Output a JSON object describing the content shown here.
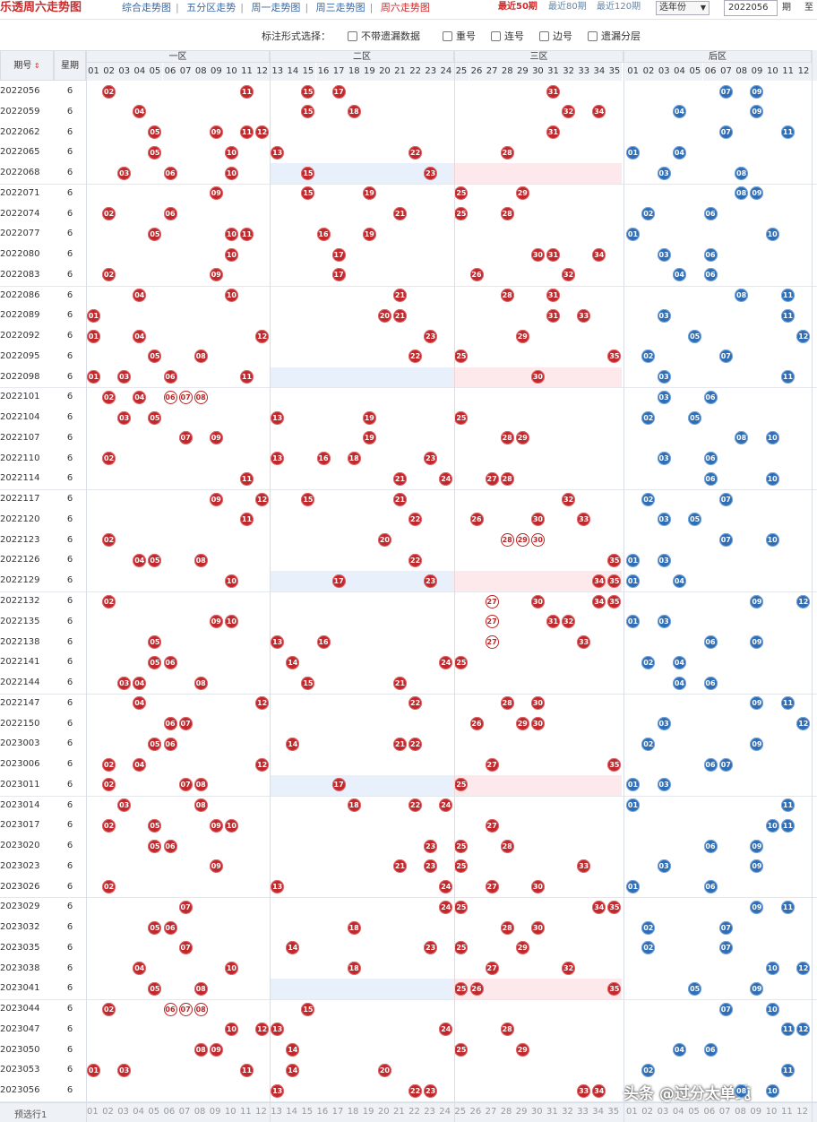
{
  "header": {
    "title": "乐透周六走势图",
    "nav": [
      "综合走势图",
      "五分区走势",
      "周一走势图",
      "周三走势图",
      "周六走势图"
    ],
    "recent": [
      "最近50期",
      "最近80期",
      "最近120期"
    ],
    "year_select": "选年份",
    "period_value": "2022056",
    "period_suffix": "期",
    "to_label": "至"
  },
  "options": {
    "label": "标注形式选择：",
    "items": [
      "不带遗漏数据",
      "重号",
      "连号",
      "边号",
      "遗漏分层"
    ]
  },
  "columns": {
    "period": "期号",
    "week": "星期",
    "zone1": "一区",
    "zone2": "二区",
    "zone3": "三区",
    "back": "后区",
    "front_numbers": [
      "01",
      "02",
      "03",
      "04",
      "05",
      "06",
      "07",
      "08",
      "09",
      "10",
      "11",
      "12",
      "13",
      "14",
      "15",
      "16",
      "17",
      "18",
      "19",
      "20",
      "21",
      "22",
      "23",
      "24",
      "25",
      "26",
      "27",
      "28",
      "29",
      "30",
      "31",
      "32",
      "33",
      "34",
      "35"
    ],
    "back_numbers": [
      "01",
      "02",
      "03",
      "04",
      "05",
      "06",
      "07",
      "08",
      "09",
      "10",
      "11",
      "12"
    ]
  },
  "rows": [
    {
      "p": "2022056",
      "w": "6",
      "f": [
        2,
        11,
        15,
        17,
        31
      ],
      "b": [
        7,
        9
      ]
    },
    {
      "p": "2022059",
      "w": "6",
      "f": [
        4,
        15,
        18,
        32,
        34
      ],
      "b": [
        4,
        9
      ]
    },
    {
      "p": "2022062",
      "w": "6",
      "f": [
        5,
        9,
        11,
        12,
        31
      ],
      "b": [
        7,
        11
      ]
    },
    {
      "p": "2022065",
      "w": "6",
      "f": [
        5,
        10,
        13,
        22,
        28
      ],
      "b": [
        1,
        4
      ]
    },
    {
      "p": "2022068",
      "w": "6",
      "f": [
        3,
        6,
        10,
        15,
        23
      ],
      "b": [
        3,
        8
      ]
    },
    {
      "p": "2022071",
      "w": "6",
      "f": [
        9,
        15,
        19,
        25,
        29
      ],
      "b": [
        8,
        9
      ]
    },
    {
      "p": "2022074",
      "w": "6",
      "f": [
        2,
        6,
        21,
        25,
        28
      ],
      "b": [
        2,
        6
      ]
    },
    {
      "p": "2022077",
      "w": "6",
      "f": [
        5,
        10,
        11,
        16,
        19
      ],
      "b": [
        1,
        10
      ]
    },
    {
      "p": "2022080",
      "w": "6",
      "f": [
        10,
        17,
        30,
        31,
        34
      ],
      "b": [
        3,
        6
      ]
    },
    {
      "p": "2022083",
      "w": "6",
      "f": [
        2,
        9,
        17,
        26,
        32
      ],
      "b": [
        4,
        6
      ]
    },
    {
      "p": "2022086",
      "w": "6",
      "f": [
        4,
        10,
        21,
        28,
        31
      ],
      "b": [
        8,
        11
      ]
    },
    {
      "p": "2022089",
      "w": "6",
      "f": [
        1,
        20,
        21,
        31,
        33
      ],
      "b": [
        3,
        11
      ]
    },
    {
      "p": "2022092",
      "w": "6",
      "f": [
        1,
        4,
        12,
        23,
        29
      ],
      "b": [
        5,
        12
      ]
    },
    {
      "p": "2022095",
      "w": "6",
      "f": [
        5,
        8,
        22,
        25,
        35
      ],
      "b": [
        2,
        7
      ]
    },
    {
      "p": "2022098",
      "w": "6",
      "f": [
        1,
        3,
        6,
        11,
        30
      ],
      "b": [
        3,
        11
      ]
    },
    {
      "p": "2022101",
      "w": "6",
      "f": [
        2,
        4,
        6,
        7,
        8
      ],
      "b": [
        3,
        6
      ]
    },
    {
      "p": "2022104",
      "w": "6",
      "f": [
        3,
        5,
        13,
        19,
        25
      ],
      "b": [
        2,
        5
      ]
    },
    {
      "p": "2022107",
      "w": "6",
      "f": [
        7,
        9,
        19,
        28,
        29
      ],
      "b": [
        8,
        10
      ]
    },
    {
      "p": "2022110",
      "w": "6",
      "f": [
        2,
        13,
        16,
        18,
        23
      ],
      "b": [
        3,
        6
      ]
    },
    {
      "p": "2022114",
      "w": "6",
      "f": [
        11,
        21,
        24,
        27,
        28
      ],
      "b": [
        6,
        10
      ]
    },
    {
      "p": "2022117",
      "w": "6",
      "f": [
        9,
        12,
        15,
        21,
        32
      ],
      "b": [
        2,
        7
      ]
    },
    {
      "p": "2022120",
      "w": "6",
      "f": [
        11,
        22,
        26,
        30,
        33
      ],
      "b": [
        3,
        5
      ]
    },
    {
      "p": "2022123",
      "w": "6",
      "f": [
        2,
        20,
        28,
        29,
        30
      ],
      "b": [
        7,
        10
      ]
    },
    {
      "p": "2022126",
      "w": "6",
      "f": [
        4,
        5,
        8,
        22,
        35
      ],
      "b": [
        1,
        3
      ]
    },
    {
      "p": "2022129",
      "w": "6",
      "f": [
        10,
        17,
        23,
        34,
        35
      ],
      "b": [
        1,
        4
      ]
    },
    {
      "p": "2022132",
      "w": "6",
      "f": [
        2,
        27,
        30,
        34,
        35
      ],
      "b": [
        9,
        12
      ]
    },
    {
      "p": "2022135",
      "w": "6",
      "f": [
        9,
        10,
        27,
        31,
        32
      ],
      "b": [
        1,
        3
      ]
    },
    {
      "p": "2022138",
      "w": "6",
      "f": [
        5,
        13,
        16,
        27,
        33
      ],
      "b": [
        6,
        9
      ]
    },
    {
      "p": "2022141",
      "w": "6",
      "f": [
        5,
        6,
        14,
        24,
        25
      ],
      "b": [
        2,
        4
      ]
    },
    {
      "p": "2022144",
      "w": "6",
      "f": [
        3,
        4,
        8,
        15,
        21
      ],
      "b": [
        4,
        6
      ]
    },
    {
      "p": "2022147",
      "w": "6",
      "f": [
        4,
        12,
        22,
        28,
        30
      ],
      "b": [
        9,
        11
      ]
    },
    {
      "p": "2022150",
      "w": "6",
      "f": [
        6,
        7,
        26,
        29,
        30
      ],
      "b": [
        3,
        12
      ]
    },
    {
      "p": "2023003",
      "w": "6",
      "f": [
        5,
        6,
        14,
        21,
        22
      ],
      "b": [
        2,
        9
      ]
    },
    {
      "p": "2023006",
      "w": "6",
      "f": [
        2,
        4,
        12,
        27,
        35
      ],
      "b": [
        6,
        7
      ]
    },
    {
      "p": "2023011",
      "w": "6",
      "f": [
        2,
        7,
        8,
        17,
        25
      ],
      "b": [
        1,
        3
      ]
    },
    {
      "p": "2023014",
      "w": "6",
      "f": [
        3,
        8,
        18,
        22,
        24
      ],
      "b": [
        1,
        11
      ]
    },
    {
      "p": "2023017",
      "w": "6",
      "f": [
        2,
        5,
        9,
        10,
        27
      ],
      "b": [
        10,
        11
      ]
    },
    {
      "p": "2023020",
      "w": "6",
      "f": [
        5,
        6,
        23,
        25,
        28
      ],
      "b": [
        6,
        9
      ]
    },
    {
      "p": "2023023",
      "w": "6",
      "f": [
        9,
        21,
        23,
        25,
        33
      ],
      "b": [
        3,
        9
      ]
    },
    {
      "p": "2023026",
      "w": "6",
      "f": [
        2,
        13,
        24,
        27,
        30
      ],
      "b": [
        1,
        6
      ]
    },
    {
      "p": "2023029",
      "w": "6",
      "f": [
        7,
        24,
        25,
        34,
        35
      ],
      "b": [
        9,
        11
      ]
    },
    {
      "p": "2023032",
      "w": "6",
      "f": [
        5,
        6,
        18,
        28,
        30
      ],
      "b": [
        2,
        7
      ]
    },
    {
      "p": "2023035",
      "w": "6",
      "f": [
        7,
        14,
        23,
        25,
        29
      ],
      "b": [
        2,
        7
      ]
    },
    {
      "p": "2023038",
      "w": "6",
      "f": [
        4,
        10,
        18,
        27,
        32
      ],
      "b": [
        10,
        12
      ]
    },
    {
      "p": "2023041",
      "w": "6",
      "f": [
        5,
        8,
        26,
        35,
        25
      ],
      "b": [
        5,
        9
      ]
    },
    {
      "p": "2023044",
      "w": "6",
      "f": [
        2,
        6,
        7,
        8,
        15
      ],
      "b": [
        7,
        10
      ]
    },
    {
      "p": "2023047",
      "w": "6",
      "f": [
        10,
        12,
        13,
        24,
        28
      ],
      "b": [
        11,
        12
      ]
    },
    {
      "p": "2023050",
      "w": "6",
      "f": [
        8,
        9,
        14,
        29,
        25
      ],
      "b": [
        4,
        6
      ]
    },
    {
      "p": "2023053",
      "w": "6",
      "f": [
        1,
        3,
        11,
        14,
        20
      ],
      "b": [
        2,
        11
      ]
    },
    {
      "p": "2023056",
      "w": "6",
      "f": [
        13,
        22,
        23,
        33,
        34
      ],
      "b": [
        8,
        10
      ]
    }
  ],
  "ring_rows": [
    {
      "p": "2022101",
      "n": [
        6,
        7,
        8
      ]
    },
    {
      "p": "2023044",
      "n": [
        6,
        7,
        8
      ]
    },
    {
      "p": "2022123",
      "n": [
        28,
        29,
        30
      ]
    },
    {
      "p": "2022132",
      "n": [
        27
      ]
    },
    {
      "p": "2022135",
      "n": [
        27
      ]
    },
    {
      "p": "2022138",
      "n": [
        27
      ]
    }
  ],
  "footer": {
    "label": "预选行1"
  },
  "watermark": "头条 @过分太单纯"
}
